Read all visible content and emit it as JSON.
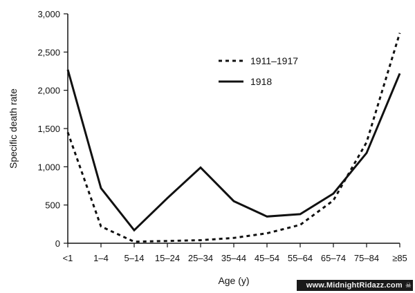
{
  "chart_data": {
    "type": "line",
    "title": "",
    "xlabel": "Age (y)",
    "ylabel": "Specific death rate",
    "categories": [
      "<1",
      "1–4",
      "5–14",
      "15–24",
      "25–34",
      "35–44",
      "45–54",
      "55–64",
      "65–74",
      "75–84",
      "≥85"
    ],
    "ylim": [
      0,
      3000
    ],
    "yticks": [
      0,
      500,
      1000,
      1500,
      2000,
      2500,
      3000
    ],
    "ytick_labels": [
      "0",
      "500",
      "1,000",
      "1,500",
      "2,000",
      "2,500",
      "3,000"
    ],
    "grid": false,
    "legend_position": "top-right",
    "series": [
      {
        "name": "1911–1917",
        "style": "dashed",
        "color": "#111111",
        "values": [
          1450,
          220,
          20,
          30,
          40,
          70,
          130,
          240,
          560,
          1320,
          2750
        ]
      },
      {
        "name": "1918",
        "style": "solid",
        "color": "#111111",
        "values": [
          2270,
          720,
          170,
          590,
          990,
          550,
          350,
          380,
          650,
          1180,
          2220
        ]
      }
    ]
  },
  "watermark": {
    "text": "www.MidnightRidazz.com",
    "icon": "skull-icon"
  }
}
